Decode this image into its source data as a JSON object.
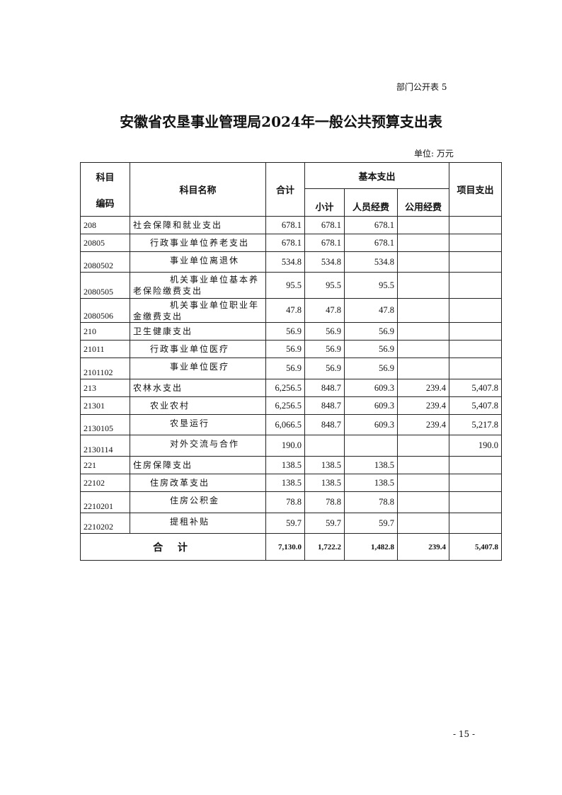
{
  "form_no": "部门公开表 5",
  "title": "安徽省农垦事业管理局2024年一般公共预算支出表",
  "unit": "单位: 万元",
  "headers": {
    "code_top": "科目",
    "code_bottom": "编码",
    "name": "科目名称",
    "total": "合计",
    "basic": "基本支出",
    "subtotal": "小计",
    "personnel": "人员经费",
    "public": "公用经费",
    "project": "项目支出"
  },
  "rows": [
    {
      "code": "208",
      "name": "社会保障和就业支出",
      "level": 0,
      "total": "678.1",
      "subtotal": "678.1",
      "personnel": "678.1",
      "public": "",
      "project": ""
    },
    {
      "code": "20805",
      "name": "行政事业单位养老支出",
      "level": 1,
      "total": "678.1",
      "subtotal": "678.1",
      "personnel": "678.1",
      "public": "",
      "project": ""
    },
    {
      "code": "2080502",
      "name": "事业单位离退休",
      "level": 2,
      "total": "534.8",
      "subtotal": "534.8",
      "personnel": "534.8",
      "public": "",
      "project": ""
    },
    {
      "code": "2080505",
      "name": "机关事业单位基本养老保险缴费支出",
      "level": 2,
      "total": "95.5",
      "subtotal": "95.5",
      "personnel": "95.5",
      "public": "",
      "project": ""
    },
    {
      "code": "2080506",
      "name": "机关事业单位职业年金缴费支出",
      "level": 2,
      "total": "47.8",
      "subtotal": "47.8",
      "personnel": "47.8",
      "public": "",
      "project": ""
    },
    {
      "code": "210",
      "name": "卫生健康支出",
      "level": 0,
      "total": "56.9",
      "subtotal": "56.9",
      "personnel": "56.9",
      "public": "",
      "project": ""
    },
    {
      "code": "21011",
      "name": "行政事业单位医疗",
      "level": 1,
      "total": "56.9",
      "subtotal": "56.9",
      "personnel": "56.9",
      "public": "",
      "project": ""
    },
    {
      "code": "2101102",
      "name": "事业单位医疗",
      "level": 2,
      "total": "56.9",
      "subtotal": "56.9",
      "personnel": "56.9",
      "public": "",
      "project": ""
    },
    {
      "code": "213",
      "name": "农林水支出",
      "level": 0,
      "total": "6,256.5",
      "subtotal": "848.7",
      "personnel": "609.3",
      "public": "239.4",
      "project": "5,407.8"
    },
    {
      "code": "21301",
      "name": "农业农村",
      "level": 1,
      "total": "6,256.5",
      "subtotal": "848.7",
      "personnel": "609.3",
      "public": "239.4",
      "project": "5,407.8"
    },
    {
      "code": "2130105",
      "name": "农垦运行",
      "level": 2,
      "total": "6,066.5",
      "subtotal": "848.7",
      "personnel": "609.3",
      "public": "239.4",
      "project": "5,217.8"
    },
    {
      "code": "2130114",
      "name": "对外交流与合作",
      "level": 2,
      "total": "190.0",
      "subtotal": "",
      "personnel": "",
      "public": "",
      "project": "190.0"
    },
    {
      "code": "221",
      "name": "住房保障支出",
      "level": 0,
      "total": "138.5",
      "subtotal": "138.5",
      "personnel": "138.5",
      "public": "",
      "project": ""
    },
    {
      "code": "22102",
      "name": "住房改革支出",
      "level": 1,
      "total": "138.5",
      "subtotal": "138.5",
      "personnel": "138.5",
      "public": "",
      "project": ""
    },
    {
      "code": "2210201",
      "name": "住房公积金",
      "level": 2,
      "total": "78.8",
      "subtotal": "78.8",
      "personnel": "78.8",
      "public": "",
      "project": ""
    },
    {
      "code": "2210202",
      "name": "提租补贴",
      "level": 2,
      "total": "59.7",
      "subtotal": "59.7",
      "personnel": "59.7",
      "public": "",
      "project": ""
    }
  ],
  "grand_total": {
    "label": "合 计",
    "total": "7,130.0",
    "subtotal": "1,722.2",
    "personnel": "1,482.8",
    "public": "239.4",
    "project": "5,407.8"
  },
  "page_no": "- 15 -"
}
